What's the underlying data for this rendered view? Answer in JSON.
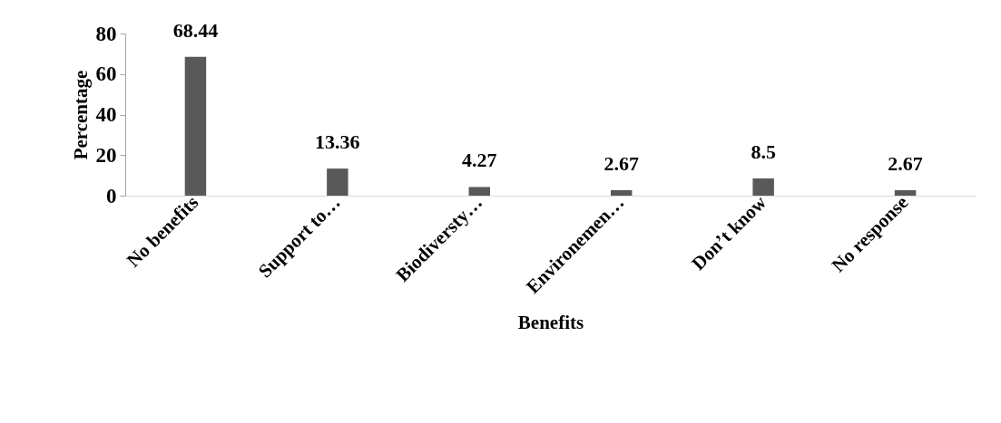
{
  "chart_data": {
    "type": "bar",
    "xlabel": "Benefits",
    "ylabel": "Percentage",
    "categories": [
      "No benefits",
      "Support to…",
      "Biodiversty…",
      "Environemen…",
      "Don’t know",
      "No response"
    ],
    "values": [
      68.44,
      13.36,
      4.27,
      2.67,
      8.5,
      2.67
    ],
    "color": "#595959",
    "ylim": [
      0,
      80
    ],
    "yticks": [
      0,
      20,
      40,
      60,
      80
    ],
    "grid": false,
    "data_labels": true
  }
}
